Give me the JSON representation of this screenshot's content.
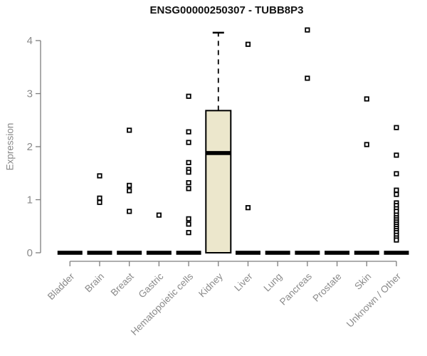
{
  "chart_data": {
    "type": "boxplot",
    "title": "ENSG00000250307 - TUBB8P3",
    "ylabel": "Expression",
    "ylim": [
      0,
      4.25
    ],
    "yticks": [
      0,
      1,
      2,
      3,
      4
    ],
    "grid": false,
    "legend": "none",
    "categories": [
      "Bladder",
      "Brain",
      "Breast",
      "Gastric",
      "Hematopoietic cells",
      "Kidney",
      "Liver",
      "Lung",
      "Pancreas",
      "Prostate",
      "Skin",
      "Unknown / Other"
    ],
    "boxes": [
      {
        "category": "Bladder",
        "whisker_low": 0,
        "q1": 0,
        "median": 0,
        "q3": 0,
        "whisker_high": 0,
        "outliers": []
      },
      {
        "category": "Brain",
        "whisker_low": 0,
        "q1": 0,
        "median": 0,
        "q3": 0,
        "whisker_high": 0,
        "outliers": [
          1.45,
          1.03,
          0.95
        ]
      },
      {
        "category": "Breast",
        "whisker_low": 0,
        "q1": 0,
        "median": 0,
        "q3": 0,
        "whisker_high": 0,
        "outliers": [
          2.31,
          1.27,
          1.17,
          0.78
        ]
      },
      {
        "category": "Gastric",
        "whisker_low": 0,
        "q1": 0,
        "median": 0,
        "q3": 0,
        "whisker_high": 0,
        "outliers": [
          0.71
        ]
      },
      {
        "category": "Hematopoietic cells",
        "whisker_low": 0,
        "q1": 0,
        "median": 0,
        "q3": 0,
        "whisker_high": 0,
        "outliers": [
          2.95,
          2.28,
          2.08,
          1.7,
          1.57,
          1.52,
          1.32,
          1.21,
          0.64,
          0.54,
          0.38
        ]
      },
      {
        "category": "Kidney",
        "whisker_low": 0,
        "q1": 0,
        "median": 1.88,
        "q3": 2.68,
        "whisker_high": 4.15,
        "outliers": []
      },
      {
        "category": "Liver",
        "whisker_low": 0,
        "q1": 0,
        "median": 0,
        "q3": 0,
        "whisker_high": 0,
        "outliers": [
          3.93,
          0.85
        ]
      },
      {
        "category": "Lung",
        "whisker_low": 0,
        "q1": 0,
        "median": 0,
        "q3": 0,
        "whisker_high": 0,
        "outliers": []
      },
      {
        "category": "Pancreas",
        "whisker_low": 0,
        "q1": 0,
        "median": 0,
        "q3": 0,
        "whisker_high": 0,
        "outliers": [
          4.2,
          3.29
        ]
      },
      {
        "category": "Prostate",
        "whisker_low": 0,
        "q1": 0,
        "median": 0,
        "q3": 0,
        "whisker_high": 0,
        "outliers": []
      },
      {
        "category": "Skin",
        "whisker_low": 0,
        "q1": 0,
        "median": 0,
        "q3": 0,
        "whisker_high": 0,
        "outliers": [
          2.9,
          2.04
        ]
      },
      {
        "category": "Unknown / Other",
        "whisker_low": 0,
        "q1": 0,
        "median": 0,
        "q3": 0,
        "whisker_high": 0,
        "outliers": [
          2.36,
          1.84,
          1.49,
          1.18,
          1.1,
          0.94,
          0.89,
          0.83,
          0.78,
          0.71,
          0.66,
          0.62,
          0.58,
          0.54,
          0.5,
          0.46,
          0.42,
          0.38,
          0.33,
          0.28,
          0.24
        ]
      }
    ],
    "colors": {
      "box_fill": "#ECE7CC",
      "box_border": "#000000",
      "median": "#000000",
      "outlier": "#000000",
      "axis": "#7d7d7d",
      "tick_label": "#8a8a8a",
      "title": "#111111"
    }
  }
}
